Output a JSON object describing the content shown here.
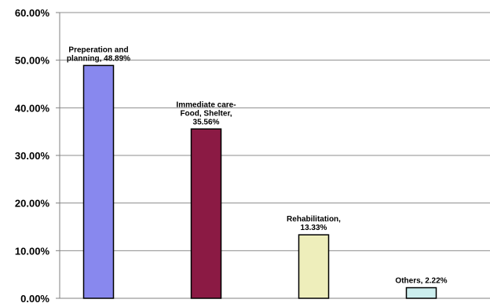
{
  "chart_data": {
    "type": "bar",
    "categories": [
      "Preperation and planning",
      "Immediate care- Food, Shelter,",
      "Rehabilitation,",
      "Others,"
    ],
    "values": [
      48.89,
      35.56,
      13.33,
      2.22
    ],
    "data_labels": [
      [
        "Preperation and",
        "planning, 48.89%"
      ],
      [
        "Immediate care-",
        "Food, Shelter,",
        "35.56%"
      ],
      [
        "Rehabilitation,",
        "13.33%"
      ],
      [
        "Others, 2.22%"
      ]
    ],
    "colors": [
      "#8888ee",
      "#8b1a44",
      "#eeeebb",
      "#cceeee"
    ],
    "ylim": [
      0,
      60
    ],
    "yticks": [
      0,
      10,
      20,
      30,
      40,
      50,
      60
    ],
    "ytick_labels": [
      "0.00%",
      "10.00%",
      "20.00%",
      "30.00%",
      "40.00%",
      "50.00%",
      "60.00%"
    ],
    "grid": true,
    "legend": "none"
  }
}
